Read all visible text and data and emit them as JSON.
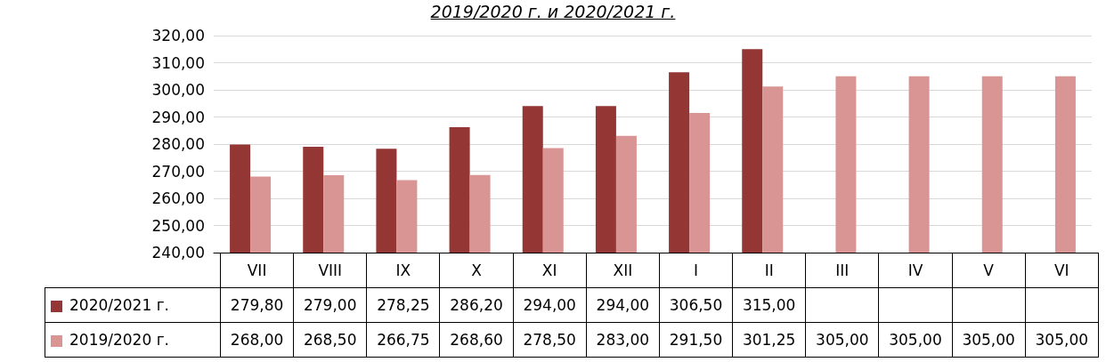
{
  "chart_data": {
    "type": "bar",
    "title": "2019/2020 г. и 2020/2021 г.",
    "categories": [
      "VII",
      "VIII",
      "IX",
      "X",
      "XI",
      "XII",
      "I",
      "II",
      "III",
      "IV",
      "V",
      "VI"
    ],
    "series": [
      {
        "name": "2020/2021 г.",
        "color": "#943634",
        "values": [
          279.8,
          279.0,
          278.25,
          286.2,
          294.0,
          294.0,
          306.5,
          315.0,
          null,
          null,
          null,
          null
        ],
        "value_labels": [
          "279,80",
          "279,00",
          "278,25",
          "286,20",
          "294,00",
          "294,00",
          "306,50",
          "315,00",
          null,
          null,
          null,
          null
        ]
      },
      {
        "name": "2019/2020 г.",
        "color": "#d99594",
        "values": [
          268.0,
          268.5,
          266.75,
          268.6,
          278.5,
          283.0,
          291.5,
          301.25,
          305.0,
          305.0,
          305.0,
          305.0
        ],
        "value_labels": [
          "268,00",
          "268,50",
          "266,75",
          "268,60",
          "278,50",
          "283,00",
          "291,50",
          "301,25",
          "305,00",
          "305,00",
          "305,00",
          "305,00"
        ]
      }
    ],
    "ylim": [
      240,
      320
    ],
    "yticks": [
      {
        "value": 240,
        "label": "240,00"
      },
      {
        "value": 250,
        "label": "250,00"
      },
      {
        "value": 260,
        "label": "260,00"
      },
      {
        "value": 270,
        "label": "270,00"
      },
      {
        "value": 280,
        "label": "280,00"
      },
      {
        "value": 290,
        "label": "290,00"
      },
      {
        "value": 300,
        "label": "300,00"
      },
      {
        "value": 310,
        "label": "310,00"
      },
      {
        "value": 320,
        "label": "320,00"
      }
    ],
    "grid": "y",
    "legend": "bottom left"
  }
}
